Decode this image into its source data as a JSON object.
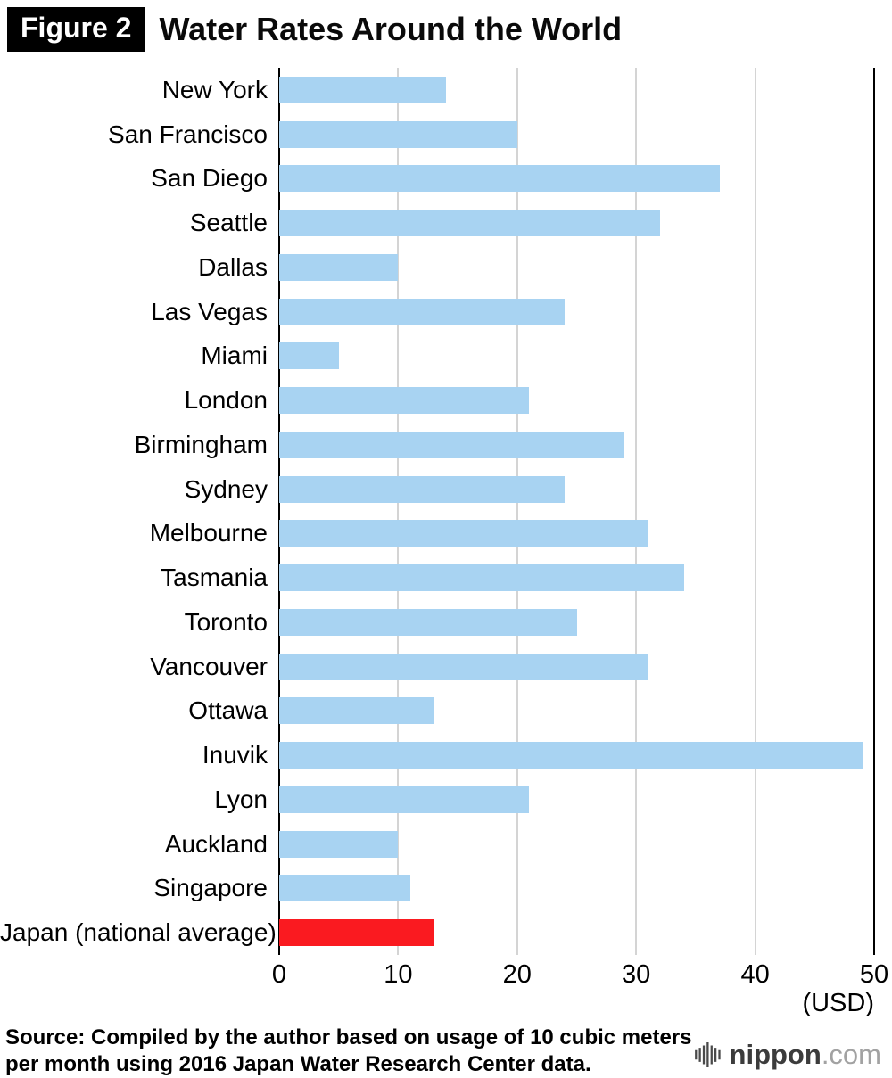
{
  "header": {
    "figure_label": "Figure 2",
    "title": "Water Rates Around the World"
  },
  "chart_data": {
    "type": "bar",
    "orientation": "horizontal",
    "title": "Water Rates Around the World",
    "categories": [
      "New York",
      "San Francisco",
      "San Diego",
      "Seattle",
      "Dallas",
      "Las Vegas",
      "Miami",
      "London",
      "Birmingham",
      "Sydney",
      "Melbourne",
      "Tasmania",
      "Toronto",
      "Vancouver",
      "Ottawa",
      "Inuvik",
      "Lyon",
      "Auckland",
      "Singapore",
      "Japan (national average)"
    ],
    "values": [
      14,
      20,
      37,
      32,
      10,
      24,
      5,
      21,
      29,
      24,
      31,
      34,
      25,
      31,
      13,
      49,
      21,
      10,
      11,
      13
    ],
    "xlim": [
      0,
      50
    ],
    "x_ticks": [
      0,
      10,
      20,
      30,
      40,
      50
    ],
    "x_unit_label": "(USD)",
    "grid": true,
    "legend": false,
    "bar_color": "#a8d3f2",
    "highlight_index": 19,
    "highlight_color": "#fa1a20"
  },
  "footer": {
    "source_line1": "Source: Compiled by the author based on usage of 10 cubic meters",
    "source_line2": "per month using 2016 Japan Water Research Center data.",
    "logo_text_bold": "nippon",
    "logo_text_light": ".com"
  }
}
